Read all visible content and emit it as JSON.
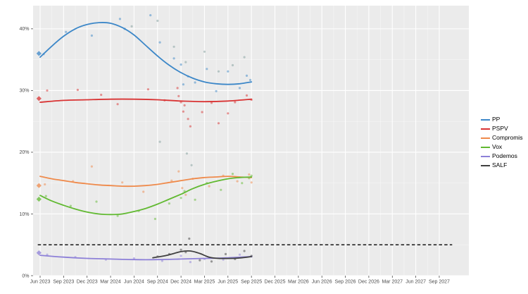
{
  "figure": {
    "background": "#ffffff",
    "panel_background": "#ebebeb",
    "grid_major_color": "#ffffff",
    "axis_text_color": "#4d4d4d",
    "tick_color": "#333333"
  },
  "chart_data": {
    "type": "line",
    "title": "",
    "subtitle": "",
    "description": "Polling average for Valencian parties with scatter of individual polls, smoothed trend lines, May-2023 election result diamonds and a dashed 5% electoral threshold line.",
    "grid": true,
    "x_axis": {
      "unit": "quarters_since_jun_2023",
      "tick_labels": [
        "Jun 2023",
        "Sep 2023",
        "Dec 2023",
        "Mar 2024",
        "Jun 2024",
        "Sep 2024",
        "Dec 2024",
        "Mar 2025",
        "Jun 2025",
        "Sep 2025",
        "Dec 2025",
        "Mar 2026",
        "Jun 2026",
        "Sep 2026",
        "Dec 2026",
        "Mar 2027",
        "Jun 2027",
        "Sep 2027"
      ],
      "tick_values": [
        0,
        1,
        2,
        3,
        4,
        5,
        6,
        7,
        8,
        9,
        10,
        11,
        12,
        13,
        14,
        15,
        16,
        17
      ]
    },
    "y_axis": {
      "tick_labels": [
        "0%",
        "10%",
        "20%",
        "30%",
        "40%"
      ],
      "tick_values": [
        0,
        10,
        20,
        30,
        40
      ],
      "ylim": [
        0,
        43.8
      ]
    },
    "threshold": {
      "value": 5,
      "x_start": -0.1,
      "x_end": 17.55,
      "color": "#262626",
      "style": "dashed"
    },
    "legend_position": "right",
    "series": [
      {
        "name": "PP",
        "color": "#3c87c8",
        "election_result": {
          "x": -0.05,
          "value": 36.0
        },
        "trend": [
          [
            0,
            35.4
          ],
          [
            0.5,
            37.2
          ],
          [
            1,
            38.8
          ],
          [
            1.5,
            40.0
          ],
          [
            2,
            40.7
          ],
          [
            2.5,
            41.0
          ],
          [
            3,
            40.9
          ],
          [
            3.5,
            40.2
          ],
          [
            4,
            39.0
          ],
          [
            4.5,
            37.3
          ],
          [
            5,
            35.6
          ],
          [
            5.5,
            34.1
          ],
          [
            6,
            32.9
          ],
          [
            6.5,
            32.0
          ],
          [
            7,
            31.4
          ],
          [
            7.5,
            31.1
          ],
          [
            8,
            31.0
          ],
          [
            8.5,
            31.1
          ],
          [
            9,
            31.4
          ]
        ],
        "points": [
          [
            0.15,
            35.9
          ],
          [
            1.1,
            39.5
          ],
          [
            2.2,
            38.9
          ],
          [
            3.4,
            41.6
          ],
          [
            3.6,
            40.0
          ],
          [
            4.7,
            42.2
          ],
          [
            5.1,
            37.8
          ],
          [
            5.7,
            35.2
          ],
          [
            6.0,
            34.2
          ],
          [
            6.1,
            31.0
          ],
          [
            6.3,
            32.3
          ],
          [
            6.6,
            31.3
          ],
          [
            7.1,
            33.5
          ],
          [
            7.5,
            29.9
          ],
          [
            8.0,
            33.1
          ],
          [
            8.5,
            30.4
          ],
          [
            8.8,
            32.4
          ],
          [
            8.95,
            31.7
          ]
        ]
      },
      {
        "name": "PSPV",
        "color": "#d93333",
        "election_result": {
          "x": -0.05,
          "value": 28.7
        },
        "trend": [
          [
            0,
            28.1
          ],
          [
            1,
            28.4
          ],
          [
            2,
            28.5
          ],
          [
            3,
            28.6
          ],
          [
            4,
            28.6
          ],
          [
            5,
            28.5
          ],
          [
            6,
            28.3
          ],
          [
            7,
            28.2
          ],
          [
            8,
            28.3
          ],
          [
            9,
            28.6
          ]
        ],
        "points": [
          [
            0.3,
            30.0
          ],
          [
            1.6,
            30.1
          ],
          [
            2.6,
            29.3
          ],
          [
            3.3,
            27.8
          ],
          [
            4.6,
            30.2
          ],
          [
            5.3,
            28.4
          ],
          [
            5.85,
            30.4
          ],
          [
            5.9,
            29.1
          ],
          [
            6.0,
            28.1
          ],
          [
            6.1,
            26.6
          ],
          [
            6.15,
            27.6
          ],
          [
            6.3,
            25.4
          ],
          [
            6.4,
            24.2
          ],
          [
            6.9,
            26.5
          ],
          [
            7.3,
            28.0
          ],
          [
            7.6,
            24.7
          ],
          [
            8.0,
            26.3
          ],
          [
            8.3,
            28.1
          ],
          [
            8.8,
            29.2
          ],
          [
            9.0,
            28.5
          ]
        ]
      },
      {
        "name": "Compromis",
        "color": "#ef8a4b",
        "election_result": {
          "x": -0.05,
          "value": 14.6
        },
        "trend": [
          [
            0,
            16.1
          ],
          [
            0.5,
            15.7
          ],
          [
            1,
            15.4
          ],
          [
            1.5,
            15.1
          ],
          [
            2,
            14.9
          ],
          [
            2.5,
            14.7
          ],
          [
            3,
            14.6
          ],
          [
            3.5,
            14.5
          ],
          [
            4,
            14.5
          ],
          [
            4.5,
            14.6
          ],
          [
            5,
            14.8
          ],
          [
            5.5,
            15.1
          ],
          [
            6,
            15.4
          ],
          [
            6.5,
            15.7
          ],
          [
            7,
            15.9
          ],
          [
            7.5,
            16.0
          ],
          [
            8,
            16.1
          ],
          [
            8.5,
            16.0
          ],
          [
            9,
            15.9
          ]
        ],
        "points": [
          [
            0.2,
            14.8
          ],
          [
            1.4,
            15.3
          ],
          [
            2.2,
            17.7
          ],
          [
            3.5,
            15.1
          ],
          [
            4.4,
            13.6
          ],
          [
            5.6,
            15.4
          ],
          [
            5.9,
            16.9
          ],
          [
            6.05,
            14.2
          ],
          [
            6.2,
            13.1
          ],
          [
            6.5,
            15.7
          ],
          [
            7.2,
            14.5
          ],
          [
            7.8,
            16.2
          ],
          [
            8.4,
            15.3
          ],
          [
            8.9,
            16.4
          ],
          [
            9.0,
            15.1
          ]
        ]
      },
      {
        "name": "Vox",
        "color": "#61b931",
        "election_result": {
          "x": -0.05,
          "value": 12.4
        },
        "trend": [
          [
            0,
            13.0
          ],
          [
            0.5,
            12.1
          ],
          [
            1,
            11.4
          ],
          [
            1.5,
            10.8
          ],
          [
            2,
            10.3
          ],
          [
            2.5,
            10.0
          ],
          [
            3,
            9.9
          ],
          [
            3.5,
            10.0
          ],
          [
            4,
            10.4
          ],
          [
            4.5,
            10.9
          ],
          [
            5,
            11.6
          ],
          [
            5.5,
            12.4
          ],
          [
            6,
            13.2
          ],
          [
            6.5,
            14.1
          ],
          [
            7,
            14.8
          ],
          [
            7.5,
            15.3
          ],
          [
            8,
            15.7
          ],
          [
            8.5,
            15.9
          ],
          [
            9,
            16.0
          ]
        ],
        "points": [
          [
            0.25,
            12.9
          ],
          [
            1.3,
            11.3
          ],
          [
            2.4,
            12.0
          ],
          [
            3.3,
            9.7
          ],
          [
            4.2,
            10.5
          ],
          [
            4.9,
            9.2
          ],
          [
            5.5,
            11.7
          ],
          [
            6.0,
            12.6
          ],
          [
            6.15,
            13.7
          ],
          [
            6.6,
            12.3
          ],
          [
            7.1,
            15.0
          ],
          [
            7.7,
            13.9
          ],
          [
            8.2,
            16.5
          ],
          [
            8.6,
            15.0
          ],
          [
            8.9,
            15.8
          ],
          [
            9.0,
            16.2
          ]
        ]
      },
      {
        "name": "Podemos",
        "color": "#8d80d8",
        "election_result": {
          "x": -0.05,
          "value": 3.7
        },
        "trend": [
          [
            0,
            3.3
          ],
          [
            1,
            3.0
          ],
          [
            2,
            2.8
          ],
          [
            3,
            2.7
          ],
          [
            4,
            2.6
          ],
          [
            5,
            2.6
          ],
          [
            6,
            2.7
          ],
          [
            7,
            2.8
          ],
          [
            8,
            2.9
          ],
          [
            9,
            3.1
          ]
        ],
        "points": [
          [
            0.3,
            3.4
          ],
          [
            1.5,
            3.0
          ],
          [
            2.8,
            2.6
          ],
          [
            4.0,
            2.8
          ],
          [
            5.2,
            2.4
          ],
          [
            6.0,
            3.2
          ],
          [
            6.4,
            2.2
          ],
          [
            7.0,
            2.7
          ],
          [
            7.8,
            2.6
          ],
          [
            8.5,
            3.4
          ],
          [
            9.0,
            3.1
          ]
        ]
      },
      {
        "name": "SALF",
        "color": "#404040",
        "election_result": null,
        "trend": [
          [
            4.8,
            2.9
          ],
          [
            5.4,
            3.3
          ],
          [
            6.0,
            3.9
          ],
          [
            6.4,
            4.0
          ],
          [
            6.8,
            3.6
          ],
          [
            7.2,
            3.0
          ],
          [
            7.6,
            2.8
          ],
          [
            8.2,
            2.8
          ],
          [
            8.6,
            2.9
          ],
          [
            9,
            3.1
          ]
        ],
        "points": [
          [
            5.0,
            3.1
          ],
          [
            5.5,
            3.5
          ],
          [
            6.0,
            4.2
          ],
          [
            6.2,
            3.8
          ],
          [
            6.35,
            6.0
          ],
          [
            6.8,
            2.5
          ],
          [
            7.3,
            2.3
          ],
          [
            7.9,
            3.5
          ],
          [
            8.3,
            2.7
          ],
          [
            8.7,
            4.0
          ],
          [
            9.0,
            3.2
          ]
        ]
      }
    ],
    "extra_points": {
      "name": "other-polls",
      "color": "#7f9e9b",
      "points": [
        [
          3.9,
          40.4
        ],
        [
          5.0,
          41.3
        ],
        [
          5.7,
          37.1
        ],
        [
          6.2,
          34.6
        ],
        [
          6.25,
          19.8
        ],
        [
          7.0,
          36.3
        ],
        [
          7.6,
          33.1
        ],
        [
          8.2,
          34.1
        ],
        [
          8.7,
          35.4
        ],
        [
          5.1,
          21.7
        ],
        [
          6.45,
          17.9
        ]
      ]
    }
  }
}
